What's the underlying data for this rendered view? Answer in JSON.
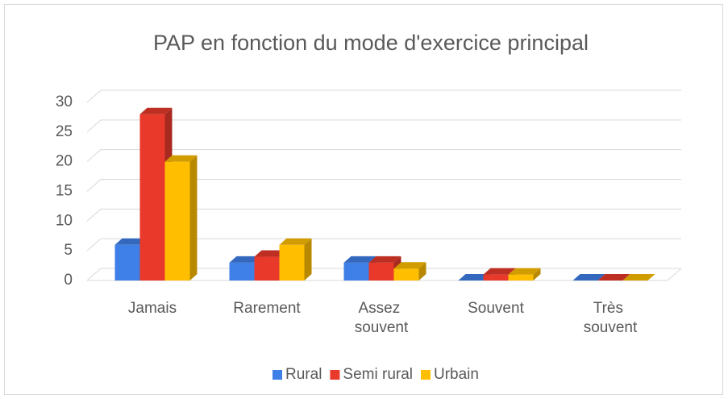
{
  "chart_data": {
    "type": "bar3d",
    "title": "PAP en fonction du mode d'exercice principal",
    "categories": [
      "Jamais",
      "Rarement",
      "Assez souvent",
      "Souvent",
      "Très souvent"
    ],
    "series": [
      {
        "name": "Rural",
        "color": "#3f7fe8",
        "values": [
          6,
          3,
          3,
          0,
          0
        ]
      },
      {
        "name": "Semi rural",
        "color": "#e8392b",
        "values": [
          28,
          4,
          3,
          1,
          0
        ]
      },
      {
        "name": "Urbain",
        "color": "#ffbe00",
        "values": [
          20,
          6,
          2,
          1,
          0
        ]
      }
    ],
    "ylim": [
      0,
      30
    ],
    "yticks": [
      0,
      5,
      10,
      15,
      20,
      25,
      30
    ],
    "grid": true,
    "legend": "bottom"
  }
}
